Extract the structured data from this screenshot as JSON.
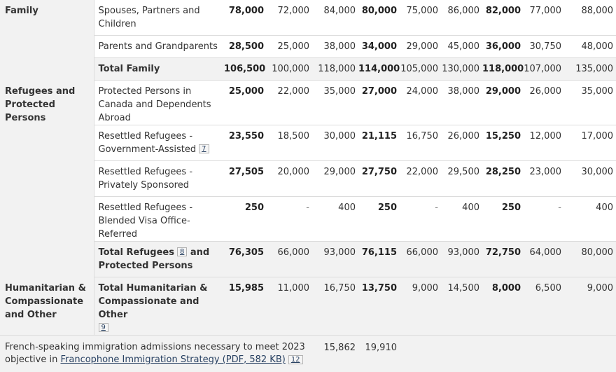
{
  "dash": "-",
  "family": {
    "label": "Family",
    "rows": [
      {
        "label": "Spouses, Partners and Children",
        "values": [
          "78,000",
          "72,000",
          "84,000",
          "80,000",
          "75,000",
          "86,000",
          "82,000",
          "77,000",
          "88,000"
        ]
      },
      {
        "label": "Parents and Grandparents",
        "values": [
          "28,500",
          "25,000",
          "38,000",
          "34,000",
          "29,000",
          "45,000",
          "36,000",
          "30,750",
          "48,000"
        ]
      }
    ],
    "total": {
      "label": "Total Family",
      "values": [
        "106,500",
        "100,000",
        "118,000",
        "114,000",
        "105,000",
        "130,000",
        "118,000",
        "107,000",
        "135,000"
      ]
    }
  },
  "refugees": {
    "label": "Refugees and Protected Persons",
    "rows": [
      {
        "label": "Protected Persons in Canada and Dependents Abroad",
        "values": [
          "25,000",
          "22,000",
          "35,000",
          "27,000",
          "24,000",
          "38,000",
          "29,000",
          "26,000",
          "35,000"
        ]
      },
      {
        "label": "Resettled Refugees - Government-Assisted",
        "note": "7",
        "values": [
          "23,550",
          "18,500",
          "30,000",
          "21,115",
          "16,750",
          "26,000",
          "15,250",
          "12,000",
          "17,000"
        ]
      },
      {
        "label": "Resettled Refugees - Privately Sponsored",
        "values": [
          "27,505",
          "20,000",
          "29,000",
          "27,750",
          "22,000",
          "29,500",
          "28,250",
          "23,000",
          "30,000"
        ]
      },
      {
        "label": "Resettled Refugees - Blended Visa Office-Referred",
        "values": [
          "250",
          "-",
          "400",
          "250",
          "-",
          "400",
          "250",
          "-",
          "400"
        ]
      }
    ],
    "total": {
      "label_pre": "Total Refugees",
      "note": "8",
      "label_post": "and Protected Persons",
      "values": [
        "76,305",
        "66,000",
        "93,000",
        "76,115",
        "66,000",
        "93,000",
        "72,750",
        "64,000",
        "80,000"
      ]
    }
  },
  "humanitarian": {
    "label": "Humanitarian & Compassionate and Other",
    "total": {
      "label": "Total Humanitarian & Compassionate and Other",
      "note": "9",
      "values": [
        "15,985",
        "11,000",
        "16,750",
        "13,750",
        "9,000",
        "14,500",
        "8,000",
        "6,500",
        "9,000"
      ]
    }
  },
  "footer": {
    "text": "French-speaking immigration admissions necessary to meet 2023 objective in ",
    "link": "Francophone Immigration Strategy (PDF, 582 KB)",
    "note": "12",
    "values": [
      "15,862",
      "19,910"
    ]
  }
}
